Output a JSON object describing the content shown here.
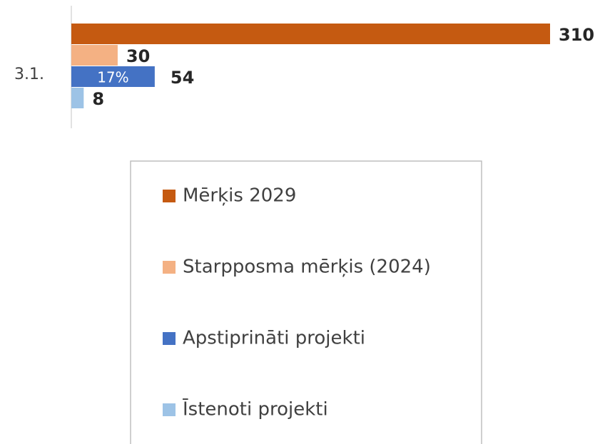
{
  "chart_data": {
    "type": "bar",
    "orientation": "horizontal",
    "categories": [
      "3.1."
    ],
    "series": [
      {
        "name": "Mērķis 2029",
        "color": "#c55a11",
        "values": [
          310
        ]
      },
      {
        "name": "Starpposma mērķis (2024)",
        "color": "#f4b183",
        "values": [
          30
        ]
      },
      {
        "name": "Apstiprināti projekti",
        "color": "#4472c4",
        "values": [
          54
        ],
        "annotation": "17%"
      },
      {
        "name": "Īstenoti projekti",
        "color": "#9dc3e6",
        "values": [
          8
        ]
      }
    ],
    "legend": "bottom"
  }
}
